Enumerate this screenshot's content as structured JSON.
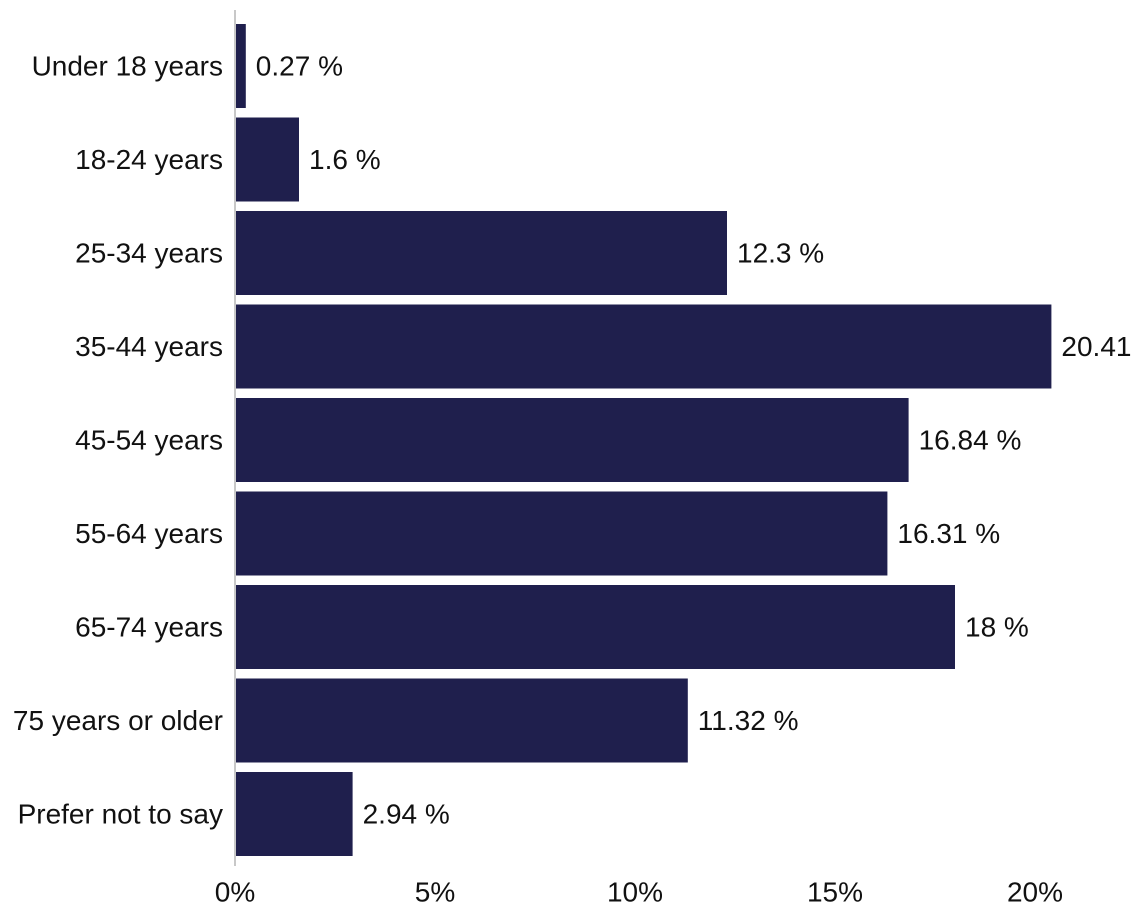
{
  "chart_data": {
    "type": "bar",
    "orientation": "horizontal",
    "categories": [
      "Under 18 years",
      "18-24 years",
      "25-34 years",
      "35-44 years",
      "45-54 years",
      "55-64 years",
      "65-74 years",
      "75 years or older",
      "Prefer not to say"
    ],
    "values": [
      0.27,
      1.6,
      12.3,
      20.41,
      16.84,
      16.31,
      18,
      11.32,
      2.94
    ],
    "value_labels": [
      "0.27 %",
      "1.6 %",
      "12.3 %",
      "20.41",
      "16.84 %",
      "16.31 %",
      "18 %",
      "11.32 %",
      "2.94 %"
    ],
    "x_ticks": [
      0,
      5,
      10,
      15,
      20
    ],
    "x_tick_labels": [
      "0%",
      "5%",
      "10%",
      "15%",
      "20%"
    ],
    "xlim": [
      0,
      20.5
    ],
    "title": "",
    "xlabel": "",
    "ylabel": "",
    "grid": false,
    "bar_color": "#1f1f4d"
  }
}
